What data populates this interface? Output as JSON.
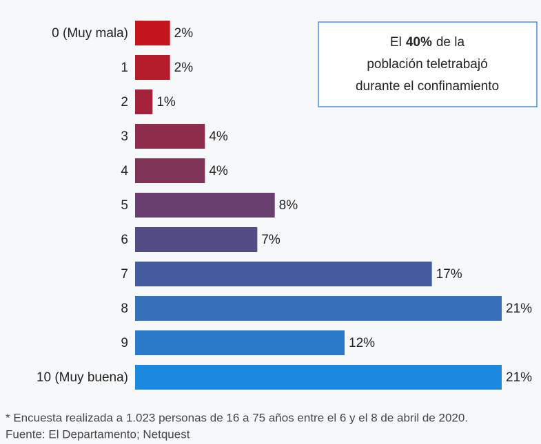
{
  "chart_data": {
    "type": "bar",
    "orientation": "horizontal",
    "categories": [
      "0 (Muy mala)",
      "1",
      "2",
      "3",
      "4",
      "5",
      "6",
      "7",
      "8",
      "9",
      "10 (Muy buena)"
    ],
    "values": [
      2,
      2,
      1,
      4,
      4,
      8,
      7,
      17,
      21,
      12,
      21
    ],
    "value_labels": [
      "2%",
      "2%",
      "1%",
      "4%",
      "4%",
      "8%",
      "7%",
      "17%",
      "21%",
      "12%",
      "21%"
    ],
    "colors": [
      "#c4161c",
      "#b51d2d",
      "#a5223b",
      "#8f2b4b",
      "#7d3457",
      "#683f6f",
      "#534b83",
      "#445c9e",
      "#3570b8",
      "#2b79c9",
      "#1b89e0"
    ],
    "annotation": {
      "before": "El",
      "highlight": "40%",
      "after": "de la",
      "lines": [
        "población teletrabajó",
        "durante el confinamiento"
      ]
    },
    "footnote": "* Encuesta realizada a 1.023 personas de 16 a 75 años entre el 6 y el 8 de abril de 2020.",
    "source": "Fuente: El Departamento; Netquest"
  }
}
